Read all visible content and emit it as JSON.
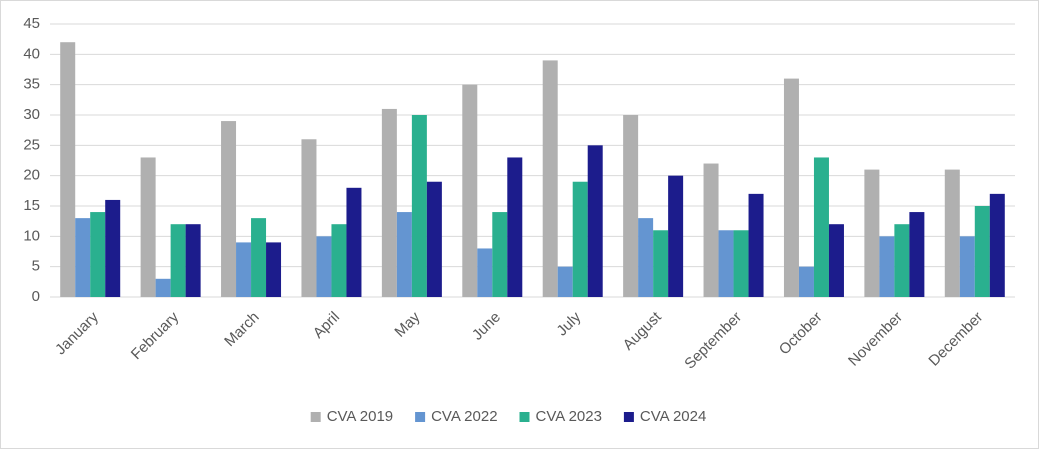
{
  "chart_data": {
    "type": "bar",
    "categories": [
      "January",
      "February",
      "March",
      "April",
      "May",
      "June",
      "July",
      "August",
      "September",
      "October",
      "November",
      "December"
    ],
    "series": [
      {
        "name": "CVA 2019",
        "color": "#b0b0b0",
        "values": [
          42,
          23,
          29,
          26,
          31,
          35,
          39,
          30,
          22,
          36,
          21,
          21
        ]
      },
      {
        "name": "CVA 2022",
        "color": "#6495d1",
        "values": [
          13,
          3,
          9,
          10,
          14,
          8,
          5,
          13,
          11,
          5,
          10,
          10
        ]
      },
      {
        "name": "CVA 2023",
        "color": "#2ab08f",
        "values": [
          14,
          12,
          13,
          12,
          30,
          14,
          19,
          11,
          11,
          23,
          12,
          15
        ]
      },
      {
        "name": "CVA 2024",
        "color": "#1c1c8c",
        "values": [
          16,
          12,
          9,
          18,
          19,
          23,
          25,
          20,
          17,
          12,
          14,
          17
        ]
      }
    ],
    "ylim": [
      0,
      45
    ],
    "yticks": [
      0,
      5,
      10,
      15,
      20,
      25,
      30,
      35,
      40,
      45
    ],
    "grid": true,
    "legend": "bottom"
  }
}
